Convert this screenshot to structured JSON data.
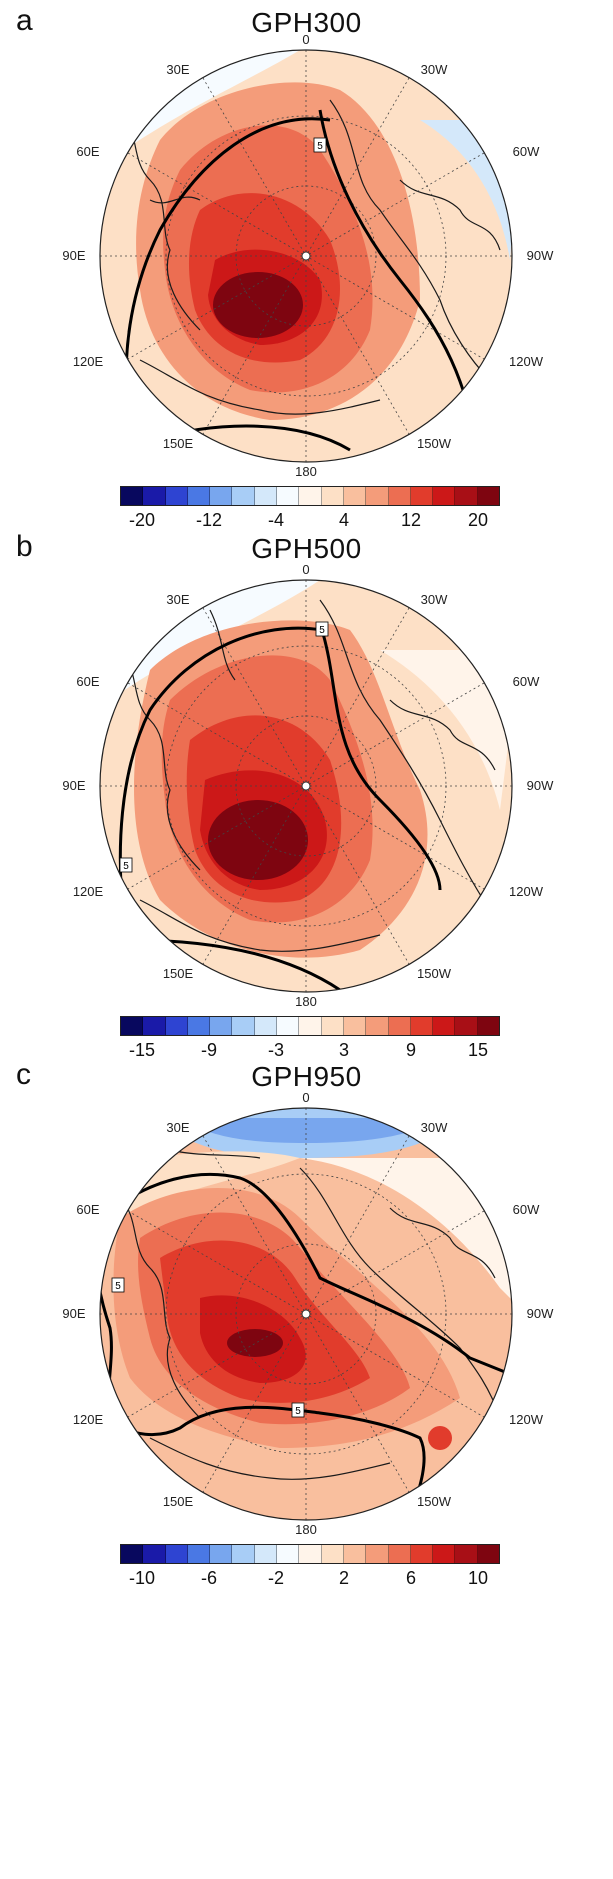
{
  "colors": {
    "scale": [
      "#08085e",
      "#1a1aa8",
      "#2e44d2",
      "#4a78e4",
      "#78a6ee",
      "#a8cdf6",
      "#d4e8fa",
      "#f6fbff",
      "#fff4ea",
      "#fde0c6",
      "#f9bf9e",
      "#f49c7a",
      "#ec6e52",
      "#e13c2c",
      "#cc1818",
      "#a80f16",
      "#7e0510"
    ],
    "land_outline": "#1a1a1a",
    "anomaly_contour": "#000000",
    "grid": "#444444"
  },
  "panels": [
    {
      "letter": "a",
      "title": "GPH300",
      "lon_labels": {
        "top": "0",
        "tl": "30E",
        "tr": "30W",
        "ul": "60E",
        "ur": "60W",
        "l": "90E",
        "r": "90W",
        "ll": "120E",
        "lr": "120W",
        "bl": "150E",
        "br": "150W",
        "bottom": "180"
      },
      "contour_label": "5",
      "colorbar": {
        "ticks": [
          "-20",
          "-12",
          "-4",
          "4",
          "12",
          "20"
        ],
        "range": [
          -20,
          20
        ]
      }
    },
    {
      "letter": "b",
      "title": "GPH500",
      "lon_labels": {
        "top": "0",
        "tl": "30E",
        "tr": "30W",
        "ul": "60E",
        "ur": "60W",
        "l": "90E",
        "r": "90W",
        "ll": "120E",
        "lr": "120W",
        "bl": "150E",
        "br": "150W",
        "bottom": "180"
      },
      "contour_label": "5",
      "colorbar": {
        "ticks": [
          "-15",
          "-9",
          "-3",
          "3",
          "9",
          "15"
        ],
        "range": [
          -15,
          15
        ]
      }
    },
    {
      "letter": "c",
      "title": "GPH950",
      "lon_labels": {
        "top": "0",
        "tl": "30E",
        "tr": "30W",
        "ul": "60E",
        "ur": "60W",
        "l": "90E",
        "r": "90W",
        "ll": "120E",
        "lr": "120W",
        "bl": "150E",
        "br": "150W",
        "bottom": "180"
      },
      "contour_label": "5",
      "colorbar": {
        "ticks": [
          "-10",
          "-6",
          "-2",
          "2",
          "6",
          "10"
        ],
        "range": [
          -10,
          10
        ]
      }
    }
  ]
}
